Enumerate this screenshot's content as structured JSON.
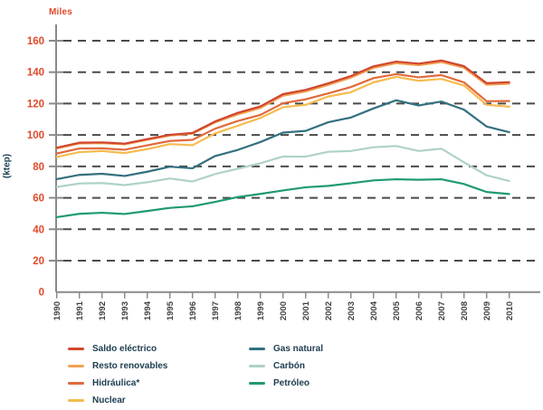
{
  "labels": {
    "y_unit": "Miles",
    "y_axis": "(ktep)"
  },
  "colors": {
    "accent_axis_text": "#e04a2a",
    "axis_line": "#8a8a8a",
    "gridline": "#4a4a4a",
    "year_text": "#3f3f3f",
    "legend_text": "#1c3c4e",
    "background": "#ffffff"
  },
  "chart_data": {
    "type": "line",
    "title": "",
    "xlabel": "",
    "ylabel": "(ktep)",
    "y_unit_note": "Miles",
    "ylim": [
      0,
      160
    ],
    "y_ticks": [
      0,
      20,
      40,
      60,
      80,
      100,
      120,
      140,
      160
    ],
    "grid": "horizontal-dashed",
    "legend_position": "bottom",
    "x": [
      1990,
      1991,
      1992,
      1993,
      1994,
      1995,
      1996,
      1997,
      1998,
      1999,
      2000,
      2001,
      2002,
      2003,
      2004,
      2005,
      2006,
      2007,
      2008,
      2009,
      2010
    ],
    "series_note": "cumulative stacked totals in thousand ktep (Mtep); series listed top line first",
    "series": [
      {
        "name": "Saldo eléctrico",
        "color": "#d0462e",
        "values": [
          91.9,
          95.1,
          95.3,
          94.5,
          97.4,
          100.1,
          101.3,
          108.6,
          114.1,
          118.2,
          126.0,
          128.7,
          132.9,
          137.5,
          143.7,
          146.7,
          145.4,
          147.4,
          143.8,
          133.0,
          133.6
        ]
      },
      {
        "name": "Resto renovables",
        "color": "#f0a153",
        "values": [
          91.4,
          94.6,
          94.8,
          94.0,
          96.9,
          99.6,
          100.8,
          108.0,
          113.1,
          117.2,
          125.0,
          127.7,
          131.9,
          136.5,
          142.7,
          145.7,
          144.4,
          146.4,
          142.8,
          132.0,
          132.6
        ]
      },
      {
        "name": "Hidráulica*",
        "color": "#e06a3c",
        "values": [
          88.2,
          91.4,
          91.5,
          90.6,
          93.4,
          96.2,
          96.9,
          104.0,
          108.9,
          112.8,
          120.2,
          122.7,
          126.5,
          130.5,
          136.2,
          138.7,
          136.7,
          138.1,
          133.5,
          121.5,
          121.6
        ]
      },
      {
        "name": "Nuclear",
        "color": "#f5bb4f",
        "values": [
          86.0,
          89.1,
          89.8,
          88.5,
          91.0,
          94.2,
          93.5,
          101.0,
          105.9,
          110.8,
          117.7,
          119.2,
          124.5,
          127.2,
          133.5,
          137.0,
          134.5,
          135.7,
          131.5,
          119.2,
          118.0
        ]
      },
      {
        "name": "Gas natural",
        "color": "#33707f",
        "values": [
          71.9,
          74.6,
          75.3,
          73.9,
          76.6,
          79.8,
          78.8,
          86.6,
          90.5,
          95.5,
          101.5,
          102.6,
          108.1,
          111.1,
          116.9,
          122.1,
          118.8,
          121.3,
          116.1,
          105.4,
          101.8
        ]
      },
      {
        "name": "Carbón",
        "color": "#aed2c8",
        "values": [
          66.9,
          69.1,
          69.4,
          68.1,
          69.9,
          72.3,
          70.4,
          75.1,
          78.5,
          82.0,
          86.3,
          86.2,
          89.3,
          89.8,
          92.2,
          93.0,
          89.8,
          91.3,
          82.6,
          74.3,
          70.7
        ]
      },
      {
        "name": "Petróleo",
        "color": "#1f9a74",
        "values": [
          47.7,
          49.8,
          50.5,
          49.7,
          51.6,
          53.6,
          54.6,
          57.4,
          60.5,
          62.5,
          64.7,
          66.7,
          67.6,
          69.3,
          71.1,
          71.8,
          71.5,
          71.8,
          68.8,
          63.7,
          62.4
        ]
      }
    ],
    "legend_columns": [
      [
        "Saldo eléctrico",
        "Resto renovables",
        "Hidráulica*",
        "Nuclear"
      ],
      [
        "Gas natural",
        "Carbón",
        "Petróleo"
      ]
    ]
  }
}
